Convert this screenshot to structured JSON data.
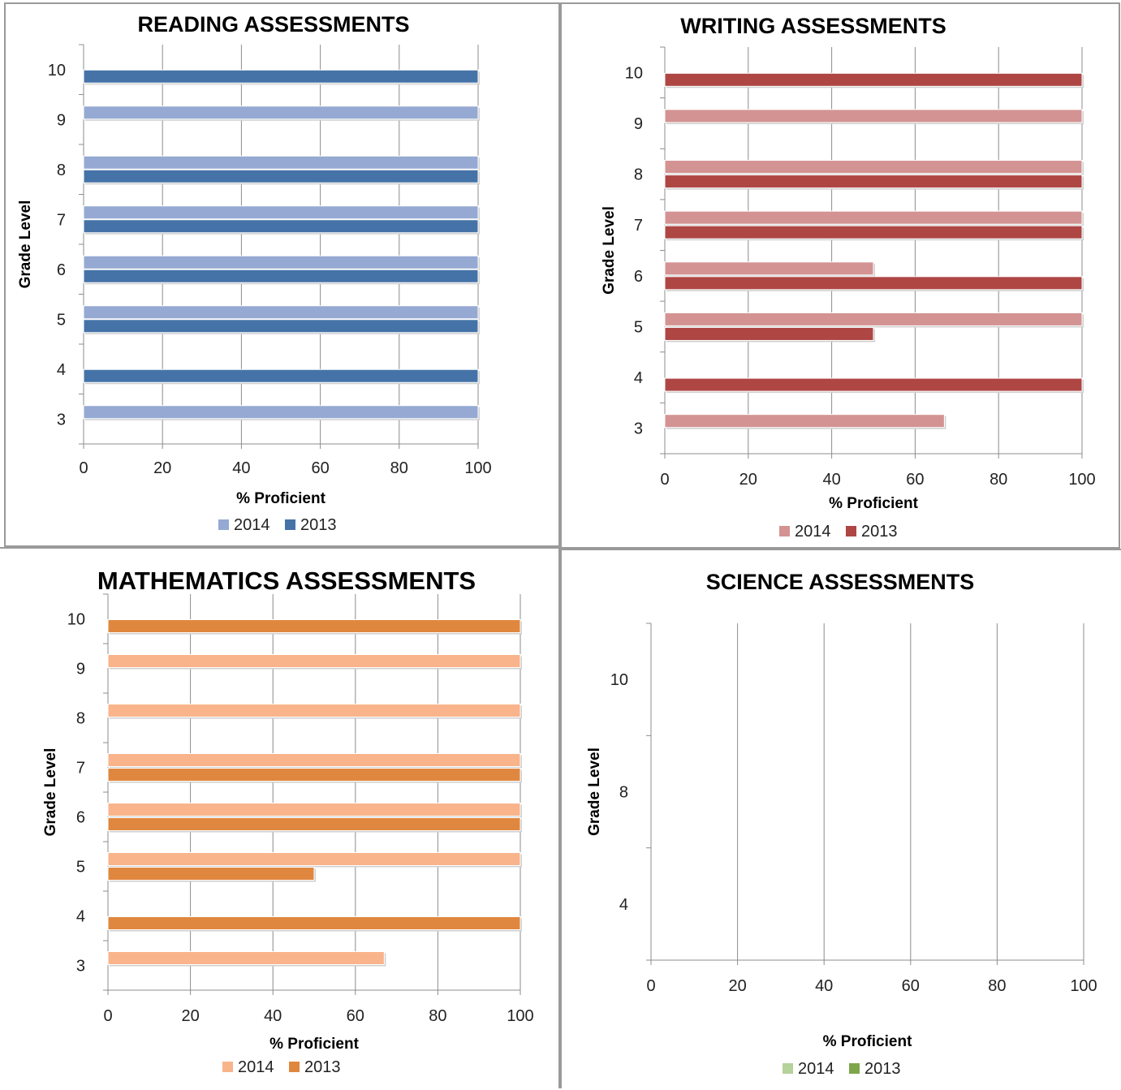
{
  "chart_data": [
    {
      "type": "bar",
      "orientation": "horizontal",
      "title": "READING ASSESSMENTS",
      "xlabel": "% Proficient",
      "ylabel": "Grade Level",
      "categories": [
        "3",
        "4",
        "5",
        "6",
        "7",
        "8",
        "9",
        "10"
      ],
      "xticks": [
        "0",
        "20",
        "40",
        "60",
        "80",
        "100"
      ],
      "xlim": [
        0,
        100
      ],
      "grid": true,
      "legend_position": "bottom",
      "series": [
        {
          "name": "2014",
          "color": "#95a9d3",
          "values": [
            100,
            null,
            100,
            100,
            100,
            100,
            100,
            null
          ]
        },
        {
          "name": "2013",
          "color": "#4573a8",
          "values": [
            null,
            100,
            100,
            100,
            100,
            100,
            null,
            100
          ]
        }
      ]
    },
    {
      "type": "bar",
      "orientation": "horizontal",
      "title": "WRITING ASSESSMENTS",
      "xlabel": "% Proficient",
      "ylabel": "Grade Level",
      "categories": [
        "3",
        "4",
        "5",
        "6",
        "7",
        "8",
        "9",
        "10"
      ],
      "xticks": [
        "0",
        "20",
        "40",
        "60",
        "80",
        "100"
      ],
      "xlim": [
        0,
        100
      ],
      "grid": true,
      "legend_position": "bottom",
      "series": [
        {
          "name": "2014",
          "color": "#d39392",
          "values": [
            67,
            null,
            100,
            50,
            100,
            100,
            100,
            null
          ]
        },
        {
          "name": "2013",
          "color": "#ae4644",
          "values": [
            null,
            100,
            50,
            100,
            100,
            100,
            null,
            100
          ]
        }
      ]
    },
    {
      "type": "bar",
      "orientation": "horizontal",
      "title": "MATHEMATICS ASSESSMENTS",
      "xlabel": "% Proficient",
      "ylabel": "Grade Level",
      "categories": [
        "3",
        "4",
        "5",
        "6",
        "7",
        "8",
        "9",
        "10"
      ],
      "xticks": [
        "0",
        "20",
        "40",
        "60",
        "80",
        "100"
      ],
      "xlim": [
        0,
        100
      ],
      "grid": true,
      "legend_position": "bottom",
      "series": [
        {
          "name": "2014",
          "color": "#f9b48b",
          "values": [
            67,
            null,
            100,
            100,
            100,
            100,
            100,
            null
          ]
        },
        {
          "name": "2013",
          "color": "#e0873f",
          "values": [
            null,
            100,
            50,
            100,
            100,
            null,
            null,
            100
          ]
        }
      ]
    },
    {
      "type": "bar",
      "orientation": "horizontal",
      "title": "SCIENCE ASSESSMENTS",
      "xlabel": "% Proficient",
      "ylabel": "Grade Level",
      "categories": [
        "4",
        "8",
        "10"
      ],
      "xticks": [
        "0",
        "20",
        "40",
        "60",
        "80",
        "100"
      ],
      "xlim": [
        0,
        100
      ],
      "grid": true,
      "legend_position": "bottom",
      "series": [
        {
          "name": "2014",
          "color": "#b5d29a",
          "values": [
            null,
            null,
            null
          ]
        },
        {
          "name": "2013",
          "color": "#7ea54c",
          "values": [
            null,
            null,
            null
          ]
        }
      ]
    }
  ]
}
